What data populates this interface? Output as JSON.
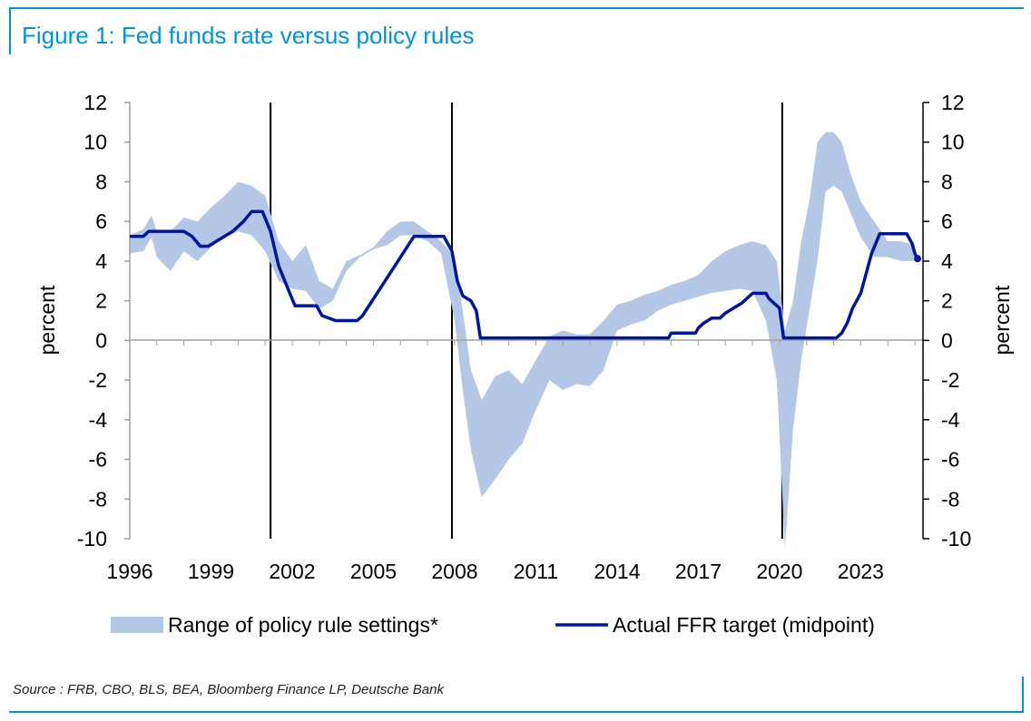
{
  "title": "Figure 1: Fed funds rate versus policy rules",
  "source": "Source : FRB, CBO, BLS, BEA, Bloomberg Finance LP, Deutsche Bank",
  "colors": {
    "accent": "#0096d6",
    "band": "#b4c7e7",
    "line": "#00169b"
  },
  "chart_data": {
    "type": "line",
    "xlabel": "",
    "ylabel": "percent",
    "ylabel_right": "percent",
    "xlim": [
      1996,
      2025.3
    ],
    "ylim": [
      -10,
      12
    ],
    "x_ticks": [
      "1996",
      "1999",
      "2002",
      "2005",
      "2008",
      "2011",
      "2014",
      "2017",
      "2020",
      "2023"
    ],
    "y_ticks": [
      "12",
      "10",
      "8",
      "6",
      "4",
      "2",
      "0",
      "-2",
      "-4",
      "-6",
      "-8",
      "-10"
    ],
    "recession_markers": [
      2001.2,
      2007.9,
      2020.1
    ],
    "legend": {
      "band": "Range of policy rule settings*",
      "line": "Actual FFR target (midpoint)",
      "position": "bottom"
    },
    "series": [
      {
        "name": "Range of policy rule settings*",
        "type": "area_range",
        "x": [
          1996,
          1996.5,
          1996.8,
          1997,
          1997.5,
          1998,
          1998.5,
          1999,
          1999.5,
          2000,
          2000.5,
          2001,
          2001.5,
          2002,
          2002.5,
          2003,
          2003.5,
          2004,
          2004.5,
          2005,
          2005.5,
          2006,
          2006.5,
          2007,
          2007.5,
          2008,
          2008.3,
          2008.6,
          2009,
          2009.5,
          2010,
          2010.5,
          2011,
          2011.5,
          2012,
          2012.5,
          2013,
          2013.5,
          2014,
          2014.5,
          2015,
          2015.5,
          2016,
          2016.5,
          2017,
          2017.5,
          2018,
          2018.5,
          2019,
          2019.5,
          2019.9,
          2020.2,
          2020.5,
          2020.8,
          2021.1,
          2021.4,
          2021.7,
          2022,
          2022.3,
          2022.6,
          2023,
          2023.5,
          2024,
          2024.5,
          2025
        ],
        "low": [
          4.4,
          4.5,
          5.2,
          4.2,
          3.5,
          4.5,
          4.0,
          4.7,
          5.2,
          5.5,
          5.3,
          4.5,
          3.0,
          2.6,
          2.5,
          1.6,
          2.0,
          3.5,
          4.2,
          4.6,
          4.8,
          5.3,
          5.3,
          5.0,
          4.4,
          1.0,
          -2.5,
          -5.5,
          -7.9,
          -7.0,
          -6.0,
          -5.2,
          -3.5,
          -2.0,
          -2.5,
          -2.2,
          -2.3,
          -1.5,
          0.5,
          0.8,
          1.0,
          1.5,
          1.8,
          2.0,
          2.2,
          2.4,
          2.5,
          2.6,
          2.5,
          1.0,
          -2.0,
          -10.5,
          -4.5,
          -1.0,
          1.5,
          4.0,
          7.5,
          7.8,
          7.5,
          6.5,
          5.2,
          4.2,
          4.2,
          4.0,
          4.0
        ],
        "high": [
          5.3,
          5.6,
          6.3,
          5.5,
          5.5,
          6.2,
          6.0,
          6.7,
          7.3,
          8.0,
          7.8,
          7.3,
          5.0,
          4.0,
          4.8,
          3.0,
          2.6,
          4.0,
          4.3,
          4.7,
          5.5,
          6.0,
          6.0,
          5.5,
          5.0,
          4.2,
          1.5,
          -1.5,
          -3.0,
          -1.8,
          -1.5,
          -2.2,
          -1.0,
          0.2,
          0.5,
          0.3,
          0.3,
          1.0,
          1.8,
          2.0,
          2.3,
          2.5,
          2.8,
          3.0,
          3.3,
          4.0,
          4.5,
          4.8,
          5.0,
          4.8,
          4.0,
          0.5,
          2.0,
          5.0,
          7.0,
          10.0,
          10.5,
          10.5,
          10.0,
          8.5,
          7.0,
          6.0,
          5.0,
          5.0,
          4.8
        ]
      },
      {
        "name": "Actual FFR target (midpoint)",
        "type": "line",
        "x": [
          1996,
          1996.5,
          1996.7,
          1998,
          1998.3,
          1998.6,
          1998.9,
          1999.2,
          1999.8,
          2000.2,
          2000.5,
          2000.9,
          2001.2,
          2001.5,
          2001.8,
          2002.1,
          2002.9,
          2003.1,
          2003.6,
          2004.4,
          2004.6,
          2006.5,
          2006.7,
          2007.6,
          2007.9,
          2008.1,
          2008.3,
          2008.6,
          2008.8,
          2008.95,
          2015.9,
          2016.0,
          2016.9,
          2017.0,
          2017.2,
          2017.5,
          2017.8,
          2018.0,
          2018.3,
          2018.6,
          2018.8,
          2019.0,
          2019.5,
          2019.6,
          2019.8,
          2020.0,
          2020.15,
          2022.1,
          2022.3,
          2022.5,
          2022.7,
          2023.0,
          2023.4,
          2023.7,
          2024.7,
          2024.9,
          2025.0,
          2025.1
        ],
        "y": [
          5.25,
          5.25,
          5.5,
          5.5,
          5.25,
          4.75,
          4.75,
          5.0,
          5.5,
          6.0,
          6.5,
          6.5,
          5.5,
          3.75,
          2.75,
          1.75,
          1.75,
          1.25,
          1.0,
          1.0,
          1.25,
          5.25,
          5.25,
          5.25,
          4.5,
          3.0,
          2.25,
          2.0,
          1.5,
          0.125,
          0.125,
          0.375,
          0.375,
          0.625,
          0.875,
          1.125,
          1.125,
          1.375,
          1.625,
          1.875,
          2.125,
          2.375,
          2.375,
          2.125,
          1.875,
          1.625,
          0.125,
          0.125,
          0.375,
          0.875,
          1.625,
          2.375,
          4.375,
          5.375,
          5.375,
          4.875,
          4.375,
          4.125
        ]
      }
    ]
  }
}
